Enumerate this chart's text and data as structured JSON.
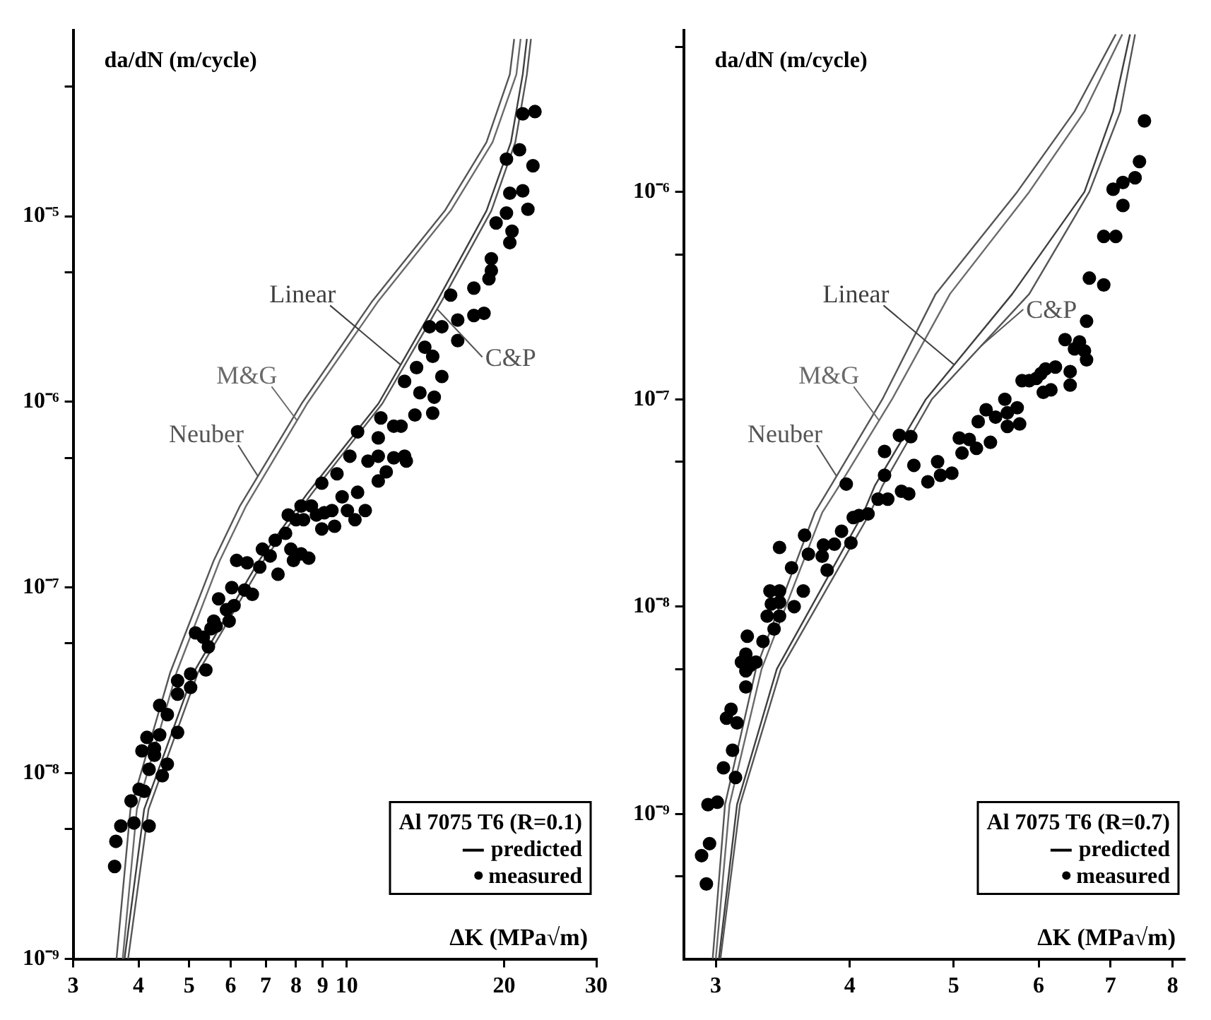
{
  "chart_data": [
    {
      "type": "scatter",
      "ylabel": "da/dN (m/cycle)",
      "xlabel": "ΔK (MPa√m)",
      "legend_title": "Al 7075 T6 (R=0.1)",
      "annotations": [
        "predicted"
      ],
      "legend": "bottom right",
      "grid": false,
      "log": "xy",
      "xlim": [
        3,
        30
      ],
      "ylim": [
        1e-09,
        0.0001
      ],
      "xticks": [
        3,
        4,
        5,
        6,
        7,
        8,
        9,
        10,
        20,
        30
      ],
      "yticks": [
        {
          "value": 1e-09,
          "label": "10⁻⁹"
        },
        {
          "value": 5e-09,
          "label": null
        },
        {
          "value": 1e-08,
          "label": "10⁻⁸"
        },
        {
          "value": 5e-08,
          "label": null
        },
        {
          "value": 1e-07,
          "label": "10⁻⁷"
        },
        {
          "value": 5e-07,
          "label": null
        },
        {
          "value": 1e-06,
          "label": "10⁻⁶"
        },
        {
          "value": 5e-06,
          "label": null
        },
        {
          "value": 1e-05,
          "label": "10⁻⁵"
        },
        {
          "value": 5e-05,
          "label": null
        }
      ],
      "series": [
        {
          "name": "Linear",
          "type": "line",
          "color": "#3f3f3f",
          "x": [
            3.76,
            4.1,
            5.1,
            6.8,
            8.4,
            11.5,
            14.9,
            18.5,
            20.6,
            21.7,
            22.1
          ],
          "values": [
            1e-09,
            6.4e-09,
            3.5e-08,
            1.4e-07,
            3.2e-07,
            9.8e-07,
            3.5e-06,
            1.07e-05,
            2.5e-05,
            5.8e-05,
            9e-05
          ]
        },
        {
          "name": "M&G",
          "type": "line",
          "color": "#6a6a6a",
          "x": [
            3.73,
            3.97,
            4.73,
            5.72,
            6.42,
            8.4,
            11.5,
            15.8,
            19.0,
            21.1,
            21.5
          ],
          "values": [
            1e-09,
            6.4e-09,
            3.5e-08,
            1.4e-07,
            2.75e-07,
            9.8e-07,
            3.5e-06,
            1.07e-05,
            2.5e-05,
            5.8e-05,
            9e-05
          ]
        },
        {
          "name": "Neuber",
          "type": "line",
          "color": "#555555",
          "x": [
            3.63,
            3.86,
            4.6,
            5.57,
            6.25,
            8.2,
            11.2,
            15.4,
            18.5,
            20.5,
            20.9
          ],
          "values": [
            1e-09,
            6.4e-09,
            3.5e-08,
            1.4e-07,
            2.75e-07,
            9.8e-07,
            3.5e-06,
            1.07e-05,
            2.5e-05,
            5.8e-05,
            9e-05
          ]
        },
        {
          "name": "C&P",
          "type": "line",
          "color": "#555555",
          "x": [
            3.82,
            4.18,
            5.2,
            6.94,
            8.57,
            11.7,
            15.2,
            18.9,
            21.0,
            22.1,
            22.5
          ],
          "values": [
            1e-09,
            6.4e-09,
            3.5e-08,
            1.4e-07,
            3.2e-07,
            9.8e-07,
            3.5e-06,
            1.07e-05,
            2.5e-05,
            5.8e-05,
            9e-05
          ]
        },
        {
          "name": "measured",
          "type": "scatter",
          "marker": "circle",
          "color": "#000000",
          "x": [
            3.6,
            3.62,
            3.7,
            3.87,
            3.92,
            4.19,
            4.01,
            4.1,
            4.06,
            4.19,
            4.29,
            4.15,
            4.39,
            4.44,
            4.54,
            4.29,
            4.39,
            4.54,
            4.75,
            4.75,
            4.75,
            5.03,
            5.03,
            5.38,
            5.14,
            5.32,
            5.44,
            5.5,
            5.63,
            5.69,
            5.57,
            5.96,
            5.89,
            6.09,
            6.16,
            6.03,
            6.38,
            6.6,
            6.45,
            6.82,
            6.9,
            7.14,
            7.39,
            7.3,
            7.64,
            7.82,
            7.91,
            8.18,
            8.46,
            7.73,
            8.0,
            8.18,
            8.27,
            8.56,
            8.75,
            8.96,
            9.06,
            9.37,
            9.48,
            9.8,
            10.03,
            10.37,
            10.49,
            10.85,
            10.49,
            10.14,
            9.58,
            8.96,
            10.98,
            11.49,
            11.62,
            12.3,
            12.7,
            11.49,
            12.3,
            12.9,
            11.49,
            11.9,
            13.0,
            13.5,
            13.8,
            14.7,
            14.6,
            12.9,
            13.6,
            15.2,
            14.1,
            14.6,
            14.4,
            15.2,
            16.3,
            16.3,
            17.5,
            18.3,
            15.8,
            17.5,
            18.7,
            18.9,
            18.9,
            19.3,
            20.2,
            20.7,
            20.5,
            21.7,
            20.5,
            22.2,
            20.2,
            21.4,
            22.7,
            21.7,
            22.9
          ],
          "values": [
            3.15e-09,
            4.3e-09,
            5.2e-09,
            7.1e-09,
            5.4e-09,
            5.2e-09,
            8.2e-09,
            8e-09,
            1.32e-08,
            1.05e-08,
            1.36e-08,
            1.56e-08,
            1.61e-08,
            9.7e-09,
            1.12e-08,
            1.25e-08,
            2.32e-08,
            2.07e-08,
            1.66e-08,
            3.15e-08,
            2.67e-08,
            3.43e-08,
            2.9e-08,
            3.6e-08,
            5.7e-08,
            5.4e-08,
            4.8e-08,
            6e-08,
            6.2e-08,
            8.7e-08,
            6.6e-08,
            6.6e-08,
            7.6e-08,
            8e-08,
            1.4e-07,
            1e-07,
            9.7e-08,
            9.2e-08,
            1.36e-07,
            1.29e-07,
            1.61e-07,
            1.48e-07,
            1.18e-07,
            1.8e-07,
            1.96e-07,
            1.61e-07,
            1.4e-07,
            1.52e-07,
            1.44e-07,
            2.46e-07,
            2.32e-07,
            2.75e-07,
            2.32e-07,
            2.75e-07,
            2.46e-07,
            2.07e-07,
            2.53e-07,
            2.6e-07,
            2.14e-07,
            3.08e-07,
            2.6e-07,
            2.32e-07,
            3.26e-07,
            2.6e-07,
            6.9e-07,
            5.1e-07,
            4.1e-07,
            3.65e-07,
            4.8e-07,
            6.4e-07,
            8.2e-07,
            7.4e-07,
            7.4e-07,
            5.1e-07,
            5e-07,
            5.1e-07,
            3.75e-07,
            4.2e-07,
            4.8e-07,
            8.5e-07,
            1.12e-06,
            1.06e-06,
            8.7e-07,
            1.29e-06,
            1.53e-06,
            1.37e-06,
            1.97e-06,
            1.76e-06,
            2.54e-06,
            2.54e-06,
            2.14e-06,
            2.76e-06,
            2.92e-06,
            3e-06,
            3.76e-06,
            4.1e-06,
            4.6e-06,
            5.9e-06,
            5.1e-06,
            9.2e-06,
            1.04e-05,
            8.3e-06,
            7.2e-06,
            1.37e-05,
            1.33e-05,
            1.09e-05,
            2.03e-05,
            2.28e-05,
            1.87e-05,
            3.56e-05,
            3.66e-05
          ]
        }
      ]
    },
    {
      "type": "scatter",
      "ylabel": "da/dN (m/cycle)",
      "xlabel": "ΔK (MPa√m)",
      "legend_title": "Al 7075 T6 (R=0.7)",
      "annotations": [
        "predicted"
      ],
      "legend": "bottom right",
      "grid": false,
      "log": "xy",
      "xlim": [
        2.8,
        8.2
      ],
      "ylim": [
        2e-10,
        6e-06
      ],
      "xticks": [
        3,
        4,
        5,
        6,
        7,
        8
      ],
      "yticks": [
        {
          "value": 5e-10,
          "label": null
        },
        {
          "value": 1e-09,
          "label": "10⁻⁹"
        },
        {
          "value": 5e-09,
          "label": null
        },
        {
          "value": 1e-08,
          "label": "10⁻⁸"
        },
        {
          "value": 5e-08,
          "label": null
        },
        {
          "value": 1e-07,
          "label": "10⁻⁷"
        },
        {
          "value": 5e-07,
          "label": null
        },
        {
          "value": 1e-06,
          "label": "10⁻⁶"
        },
        {
          "value": 5e-06,
          "label": null
        }
      ],
      "series": [
        {
          "name": "Linear",
          "type": "line",
          "color": "#3f3f3f",
          "x": [
            3.02,
            3.14,
            3.42,
            4.12,
            4.22,
            4.71,
            5.67,
            6.62,
            7.04,
            7.3
          ],
          "values": [
            2e-10,
            1.11e-09,
            5e-09,
            2.84e-08,
            3.82e-08,
            1e-07,
            3.22e-07,
            1e-06,
            2.44e-06,
            5.75e-06
          ]
        },
        {
          "name": "M&G",
          "type": "line",
          "color": "#6a6a6a",
          "x": [
            3.0,
            3.09,
            3.31,
            3.77,
            3.91,
            4.38,
            4.96,
            5.88,
            6.62,
            7.18
          ],
          "values": [
            2e-10,
            1.11e-09,
            5e-09,
            2.84e-08,
            3.82e-08,
            1e-07,
            3.22e-07,
            1e-06,
            2.44e-06,
            5.75e-06
          ]
        },
        {
          "name": "Neuber",
          "type": "line",
          "color": "#555555",
          "x": [
            2.98,
            3.06,
            3.27,
            3.71,
            3.84,
            4.29,
            4.81,
            5.73,
            6.48,
            7.08
          ],
          "values": [
            2e-10,
            1.11e-09,
            5e-09,
            2.84e-08,
            3.82e-08,
            1e-07,
            3.22e-07,
            1e-06,
            2.44e-06,
            5.75e-06
          ]
        },
        {
          "name": "C&P",
          "type": "line",
          "color": "#555555",
          "x": [
            3.03,
            3.16,
            3.45,
            4.18,
            4.29,
            4.77,
            5.88,
            6.69,
            7.15,
            7.38
          ],
          "values": [
            2e-10,
            1.11e-09,
            5e-09,
            2.84e-08,
            3.82e-08,
            1e-07,
            3.22e-07,
            1e-06,
            2.44e-06,
            5.75e-06
          ]
        },
        {
          "name": "measured",
          "type": "scatter",
          "marker": "circle",
          "color": "#000000",
          "x": [
            2.91,
            2.96,
            2.94,
            2.95,
            3.01,
            3.05,
            3.13,
            3.11,
            3.07,
            3.1,
            3.14,
            3.2,
            3.2,
            3.2,
            3.17,
            3.23,
            3.21,
            3.27,
            3.32,
            3.35,
            3.37,
            3.4,
            3.38,
            3.44,
            3.44,
            3.44,
            3.44,
            3.53,
            3.55,
            3.62,
            3.63,
            3.66,
            3.77,
            3.78,
            3.81,
            3.87,
            3.93,
            4.01,
            4.03,
            4.08,
            4.16,
            4.25,
            4.34,
            4.47,
            4.54,
            3.97,
            4.31,
            4.31,
            4.45,
            4.56,
            4.59,
            4.73,
            4.83,
            4.86,
            4.98,
            5.06,
            5.09,
            5.17,
            5.25,
            5.27,
            5.41,
            5.36,
            5.47,
            5.58,
            5.61,
            5.73,
            5.76,
            5.61,
            5.79,
            5.88,
            5.97,
            6.03,
            6.09,
            6.22,
            6.06,
            6.16,
            6.42,
            6.35,
            6.48,
            6.55,
            6.62,
            6.65,
            6.65,
            6.42,
            6.69,
            6.9,
            6.9,
            7.08,
            7.19,
            7.04,
            7.19,
            7.38,
            7.45,
            7.53
          ],
          "values": [
            6.3e-10,
            7.2e-10,
            4.6e-10,
            1.11e-09,
            1.14e-09,
            1.67e-09,
            1.5e-09,
            2.03e-09,
            2.9e-09,
            3.2e-09,
            2.75e-09,
            4.1e-09,
            4.9e-09,
            5.9e-09,
            5.4e-09,
            5.2e-09,
            7.2e-09,
            5.4e-09,
            6.8e-09,
            9e-09,
            1.19e-08,
            7.8e-09,
            1.03e-08,
            9e-09,
            1.05e-08,
            1.19e-08,
            1.93e-08,
            1.54e-08,
            1e-08,
            1.19e-08,
            2.21e-08,
            1.79e-08,
            1.75e-08,
            1.98e-08,
            1.5e-08,
            2e-08,
            2.31e-08,
            2.03e-08,
            2.69e-08,
            2.75e-08,
            2.8e-08,
            3.3e-08,
            3.3e-08,
            3.6e-08,
            3.5e-08,
            3.9e-08,
            5.6e-08,
            4.3e-08,
            6.7e-08,
            6.6e-08,
            4.8e-08,
            4e-08,
            5e-08,
            4.3e-08,
            4.4e-08,
            6.5e-08,
            5.5e-08,
            6.4e-08,
            5.8e-08,
            7.8e-08,
            6.2e-08,
            8.9e-08,
            8.2e-08,
            1e-07,
            8.6e-08,
            9.1e-08,
            7.6e-08,
            7.4e-08,
            1.23e-07,
            1.23e-07,
            1.26e-07,
            1.33e-07,
            1.4e-07,
            1.43e-07,
            1.08e-07,
            1.11e-07,
            1.36e-07,
            1.94e-07,
            1.75e-07,
            1.89e-07,
            1.71e-07,
            1.55e-07,
            2.38e-07,
            1.17e-07,
            3.84e-07,
            3.56e-07,
            6.1e-07,
            6.1e-07,
            8.6e-07,
            1.03e-06,
            1.11e-06,
            1.17e-06,
            1.4e-06,
            2.2e-06
          ]
        }
      ]
    }
  ]
}
